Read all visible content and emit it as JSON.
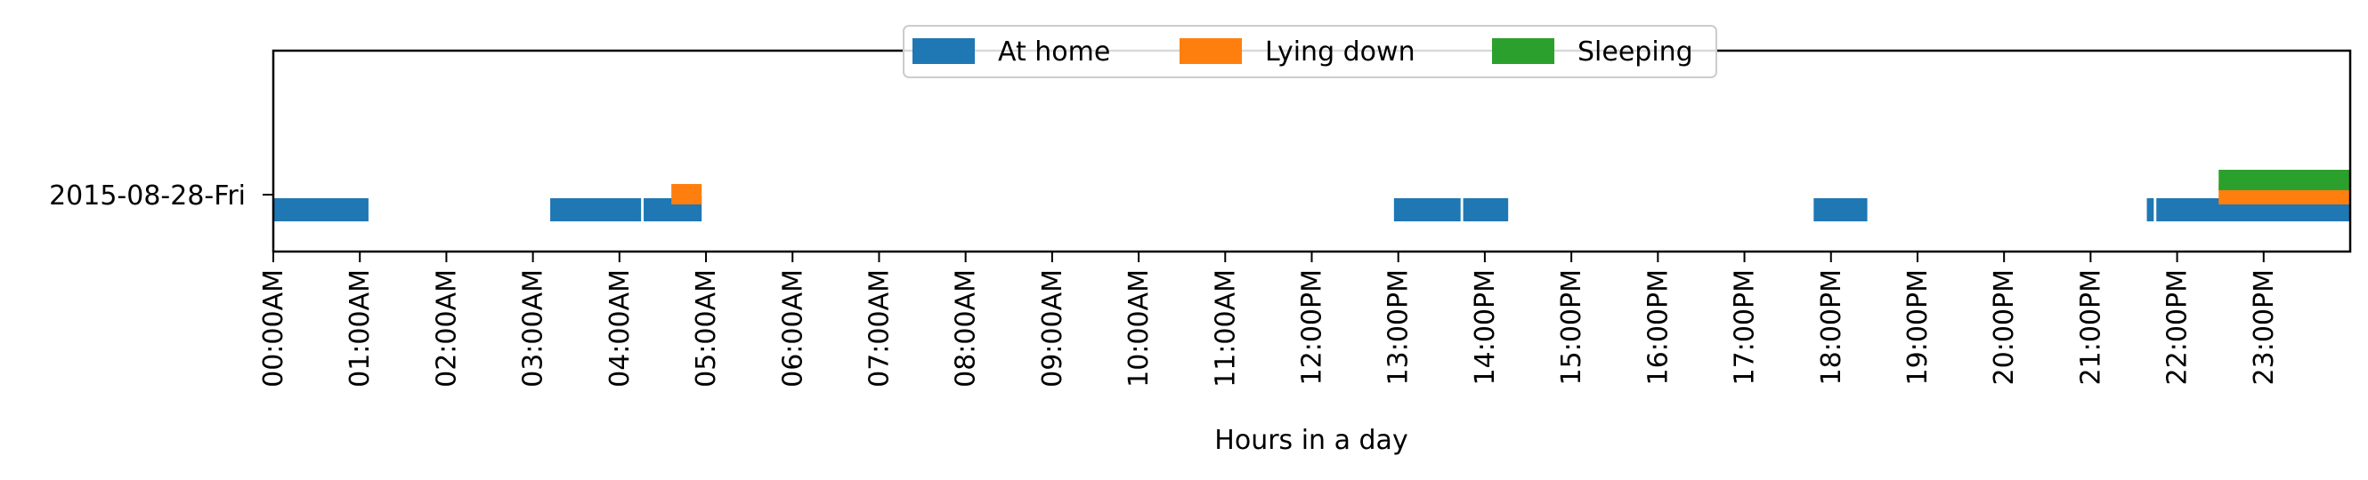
{
  "chart_data": {
    "type": "timeline",
    "title": "",
    "xlabel": "Hours in a day",
    "ylabel": "",
    "xlim": [
      0,
      24
    ],
    "x_unit": "hours",
    "day": "2015-08-28-Fri",
    "tick_labels": [
      "00:00AM",
      "01:00AM",
      "02:00AM",
      "03:00AM",
      "04:00AM",
      "05:00AM",
      "06:00AM",
      "07:00AM",
      "08:00AM",
      "09:00AM",
      "10:00AM",
      "11:00AM",
      "12:00PM",
      "13:00PM",
      "14:00PM",
      "15:00PM",
      "16:00PM",
      "17:00PM",
      "18:00PM",
      "19:00PM",
      "20:00PM",
      "21:00PM",
      "22:00PM",
      "23:00PM"
    ],
    "legend_position": "top-center",
    "series": [
      {
        "name": "At home",
        "color": "#1f77b4",
        "intervals": [
          [
            0.0,
            1.1
          ],
          [
            3.2,
            4.25
          ],
          [
            4.28,
            4.95
          ],
          [
            12.95,
            13.72
          ],
          [
            13.75,
            14.27
          ],
          [
            17.8,
            18.42
          ],
          [
            21.65,
            21.73
          ],
          [
            21.76,
            24.0
          ]
        ]
      },
      {
        "name": "Lying down",
        "color": "#ff7f0e",
        "intervals": [
          [
            4.6,
            4.95
          ],
          [
            22.48,
            24.0
          ]
        ]
      },
      {
        "name": "Sleeping",
        "color": "#2ca02c",
        "intervals": [
          [
            22.48,
            24.0
          ]
        ]
      }
    ]
  }
}
